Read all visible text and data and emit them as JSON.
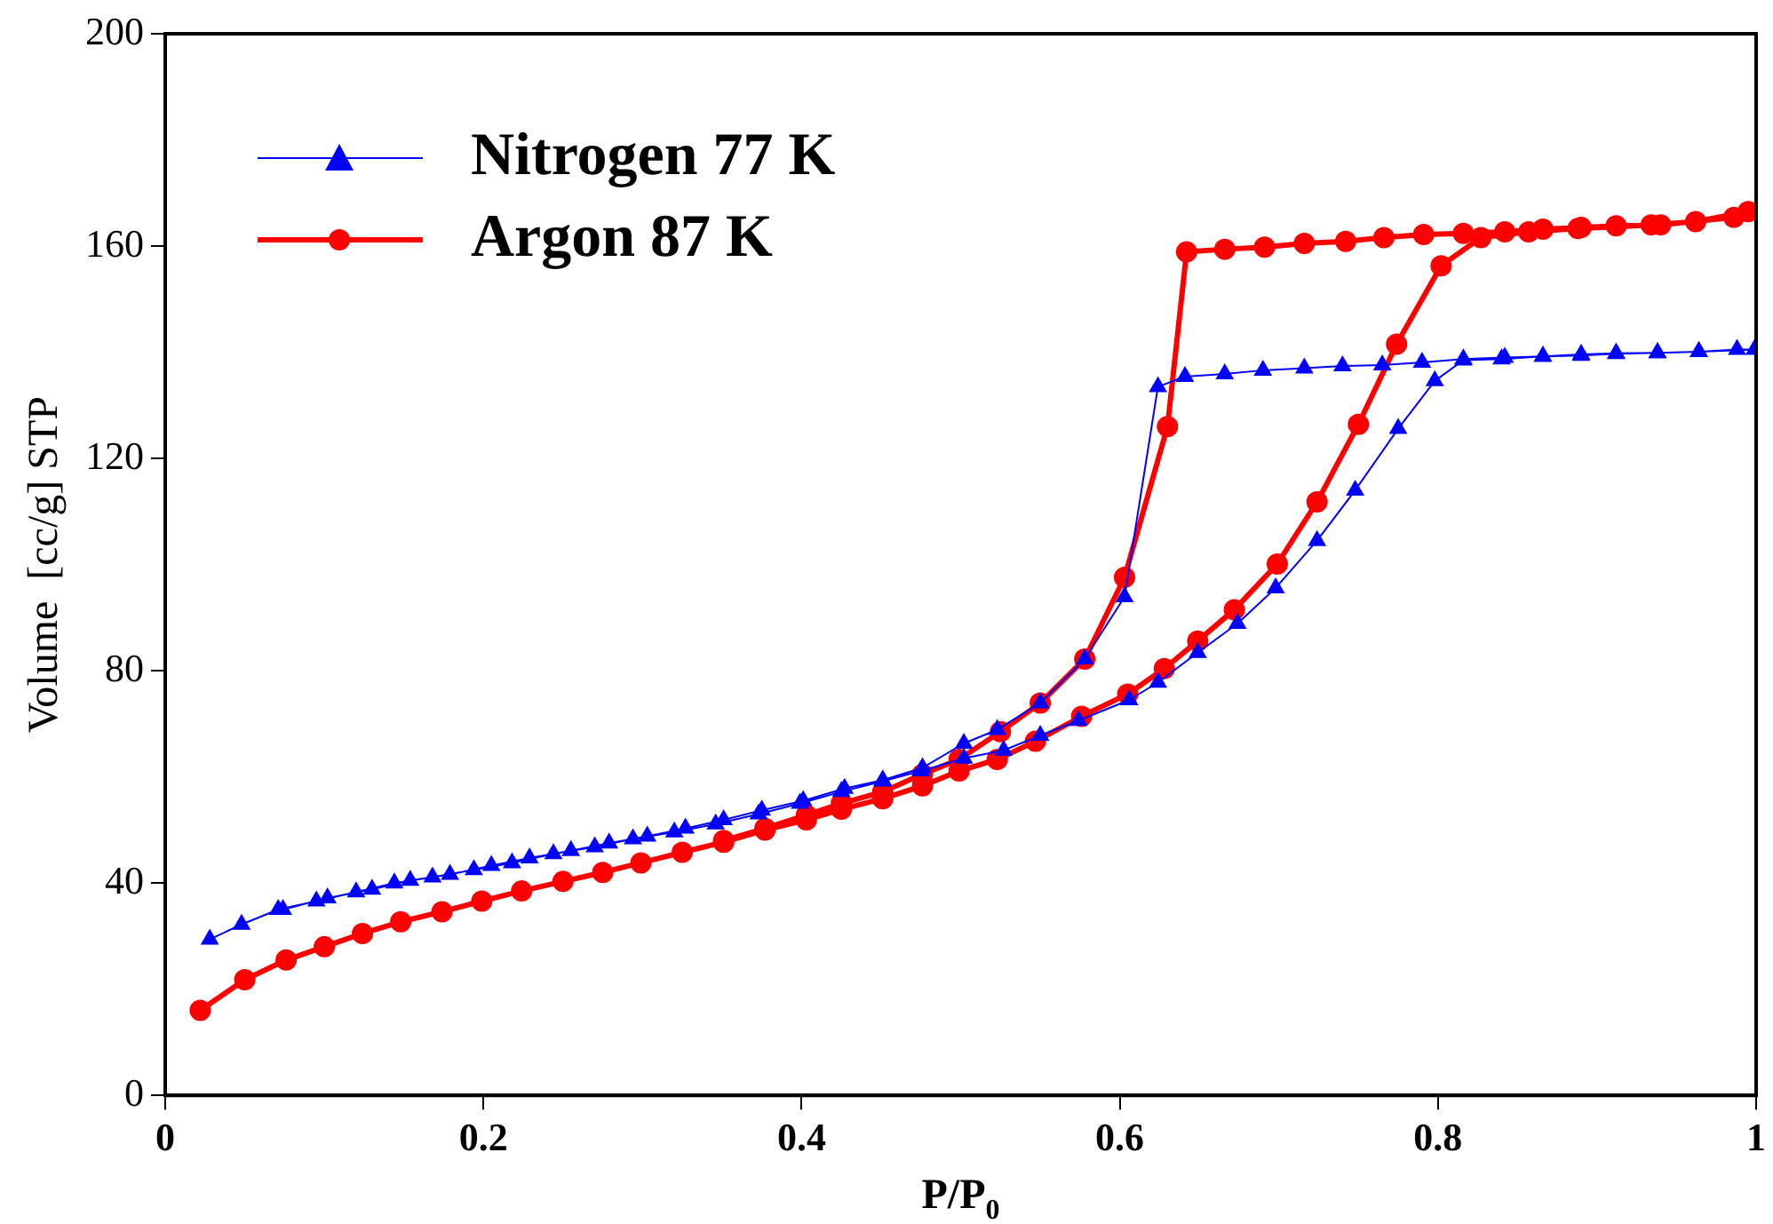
{
  "chart_data": {
    "type": "line",
    "xlabel": "P/P$_{0}$",
    "ylabel": "Volume  [cc/g] STP",
    "xlim": [
      0,
      1
    ],
    "xticks": [
      0,
      0.2,
      0.4,
      0.6,
      0.8,
      {
        "value": 1,
        "label": "1"
      }
    ],
    "ylim": [
      0,
      200
    ],
    "yticks": [
      0,
      40,
      80,
      120,
      160,
      200
    ],
    "grid": false,
    "legend": "top left",
    "line_style": "solid",
    "series": [
      {
        "name": "Nitrogen 77 K",
        "color": "#0000ff",
        "marker": "triangle",
        "x": [
          0.028,
          0.048,
          0.071,
          0.095,
          0.12,
          0.144,
          0.168,
          0.194,
          0.218,
          0.244,
          0.27,
          0.294,
          0.32,
          0.346,
          0.373,
          0.399,
          0.425,
          0.451,
          0.475,
          0.502,
          0.527,
          0.55,
          0.574,
          0.606,
          0.624,
          0.649,
          0.674,
          0.698,
          0.724,
          0.748,
          0.775,
          0.798,
          0.816,
          0.84,
          0.866,
          0.89,
          0.912,
          0.938,
          0.964,
          0.999,
          0.988,
          0.964,
          0.938,
          0.912,
          0.89,
          0.866,
          0.842,
          0.816,
          0.79,
          0.765,
          0.74,
          0.716,
          0.69,
          0.666,
          0.641,
          0.624,
          0.603,
          0.578,
          0.55,
          0.523,
          0.502,
          0.476,
          0.451,
          0.427,
          0.401,
          0.375,
          0.351,
          0.327,
          0.303,
          0.279,
          0.255,
          0.229,
          0.205,
          0.179,
          0.154,
          0.13,
          0.102,
          0.074
        ],
        "values": [
          29.4,
          32.2,
          35.0,
          36.6,
          38.3,
          40.0,
          41.1,
          42.5,
          43.8,
          45.5,
          46.8,
          48.3,
          49.6,
          51.1,
          53.0,
          55.0,
          57.2,
          59.2,
          61.1,
          63.5,
          65.0,
          67.8,
          70.6,
          74.5,
          77.8,
          83.4,
          88.9,
          95.6,
          104.5,
          114.0,
          125.6,
          134.6,
          138.5,
          138.7,
          139.2,
          139.4,
          139.7,
          139.9,
          140.1,
          140.5,
          140.5,
          140.1,
          139.9,
          139.8,
          139.6,
          139.2,
          139.0,
          138.7,
          138.1,
          137.6,
          137.4,
          137.0,
          136.6,
          135.9,
          135.4,
          133.5,
          93.9,
          82.2,
          73.9,
          68.9,
          66.3,
          61.7,
          59.4,
          57.8,
          55.5,
          53.7,
          51.9,
          50.3,
          48.8,
          47.5,
          46.1,
          44.7,
          43.3,
          41.6,
          40.5,
          38.8,
          37.2,
          35.0
        ]
      },
      {
        "name": "Argon 87 K",
        "color": "#ff0000",
        "marker": "circle",
        "x": [
          0.022,
          0.05,
          0.076,
          0.1,
          0.124,
          0.148,
          0.174,
          0.199,
          0.224,
          0.25,
          0.275,
          0.299,
          0.325,
          0.351,
          0.377,
          0.403,
          0.425,
          0.451,
          0.476,
          0.499,
          0.523,
          0.547,
          0.576,
          0.605,
          0.628,
          0.649,
          0.672,
          0.699,
          0.724,
          0.75,
          0.774,
          0.802,
          0.827,
          0.857,
          0.888,
          0.934,
          0.962,
          0.995,
          0.986,
          0.94,
          0.912,
          0.89,
          0.866,
          0.842,
          0.816,
          0.791,
          0.766,
          0.742,
          0.716,
          0.691,
          0.666,
          0.642,
          0.63,
          0.603,
          0.578,
          0.55,
          0.525,
          0.499,
          0.476,
          0.451,
          0.425,
          0.403,
          0.377,
          0.351
        ],
        "values": [
          16.0,
          21.8,
          25.5,
          28.0,
          30.5,
          32.7,
          34.6,
          36.6,
          38.5,
          40.3,
          42.0,
          43.8,
          45.8,
          47.7,
          50.0,
          51.9,
          53.9,
          55.9,
          58.3,
          61.1,
          63.3,
          66.7,
          71.4,
          75.6,
          80.4,
          85.6,
          91.5,
          100.1,
          111.8,
          126.4,
          141.5,
          156.3,
          161.6,
          162.7,
          163.3,
          164.0,
          164.6,
          166.5,
          165.4,
          164.0,
          163.8,
          163.5,
          163.2,
          162.7,
          162.4,
          162.2,
          161.6,
          160.9,
          160.5,
          159.8,
          159.4,
          158.9,
          126.0,
          97.6,
          82.2,
          73.9,
          68.5,
          63.3,
          60.5,
          57.2,
          55.0,
          52.8,
          50.3,
          48.0
        ]
      }
    ]
  }
}
